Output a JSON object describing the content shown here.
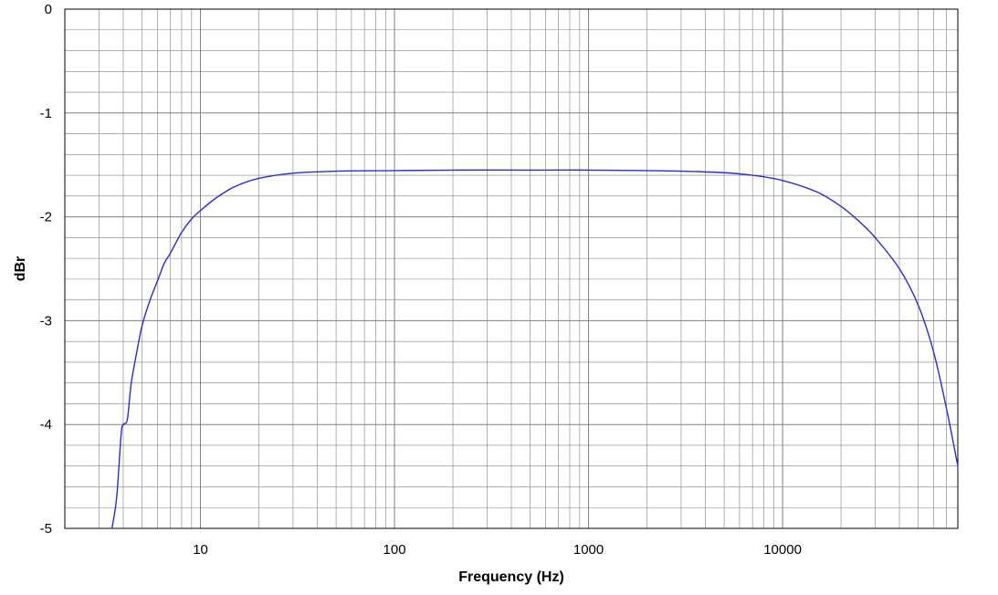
{
  "chart_data": {
    "type": "line",
    "title": "",
    "xlabel": "Frequency (Hz)",
    "ylabel": "dBr",
    "x_scale": "log",
    "xlim": [
      2,
      80000
    ],
    "ylim": [
      -5,
      0
    ],
    "x_ticks": [
      {
        "value": 10,
        "label": "10"
      },
      {
        "value": 100,
        "label": "100"
      },
      {
        "value": 1000,
        "label": "1000"
      },
      {
        "value": 10000,
        "label": "10000"
      }
    ],
    "y_ticks": [
      {
        "value": 0,
        "label": "0"
      },
      {
        "value": -1,
        "label": "-1"
      },
      {
        "value": -2,
        "label": "-2"
      },
      {
        "value": -3,
        "label": "-3"
      },
      {
        "value": -4,
        "label": "-4"
      },
      {
        "value": -5,
        "label": "-5"
      }
    ],
    "grid": true,
    "colors": {
      "line": "#2b2bd6",
      "grid": "#808080",
      "axis": "#000000"
    },
    "series": [
      {
        "name": "",
        "x": [
          3.5,
          3.7,
          3.9,
          4.0,
          4.2,
          4.4,
          4.7,
          5.0,
          5.5,
          6.0,
          6.5,
          7.0,
          8.0,
          9.0,
          10,
          12,
          15,
          20,
          30,
          50,
          100,
          200,
          500,
          1000,
          2000,
          3000,
          5000,
          7000,
          10000,
          15000,
          20000,
          25000,
          30000,
          40000,
          50000,
          60000,
          70000,
          80000
        ],
        "y": [
          -5.0,
          -4.7,
          -4.1,
          -4.0,
          -3.95,
          -3.6,
          -3.3,
          -3.05,
          -2.8,
          -2.62,
          -2.45,
          -2.35,
          -2.15,
          -2.02,
          -1.94,
          -1.82,
          -1.71,
          -1.63,
          -1.58,
          -1.56,
          -1.555,
          -1.55,
          -1.55,
          -1.55,
          -1.555,
          -1.56,
          -1.575,
          -1.6,
          -1.65,
          -1.76,
          -1.9,
          -2.05,
          -2.2,
          -2.5,
          -2.85,
          -3.3,
          -3.85,
          -4.4
        ]
      }
    ]
  }
}
